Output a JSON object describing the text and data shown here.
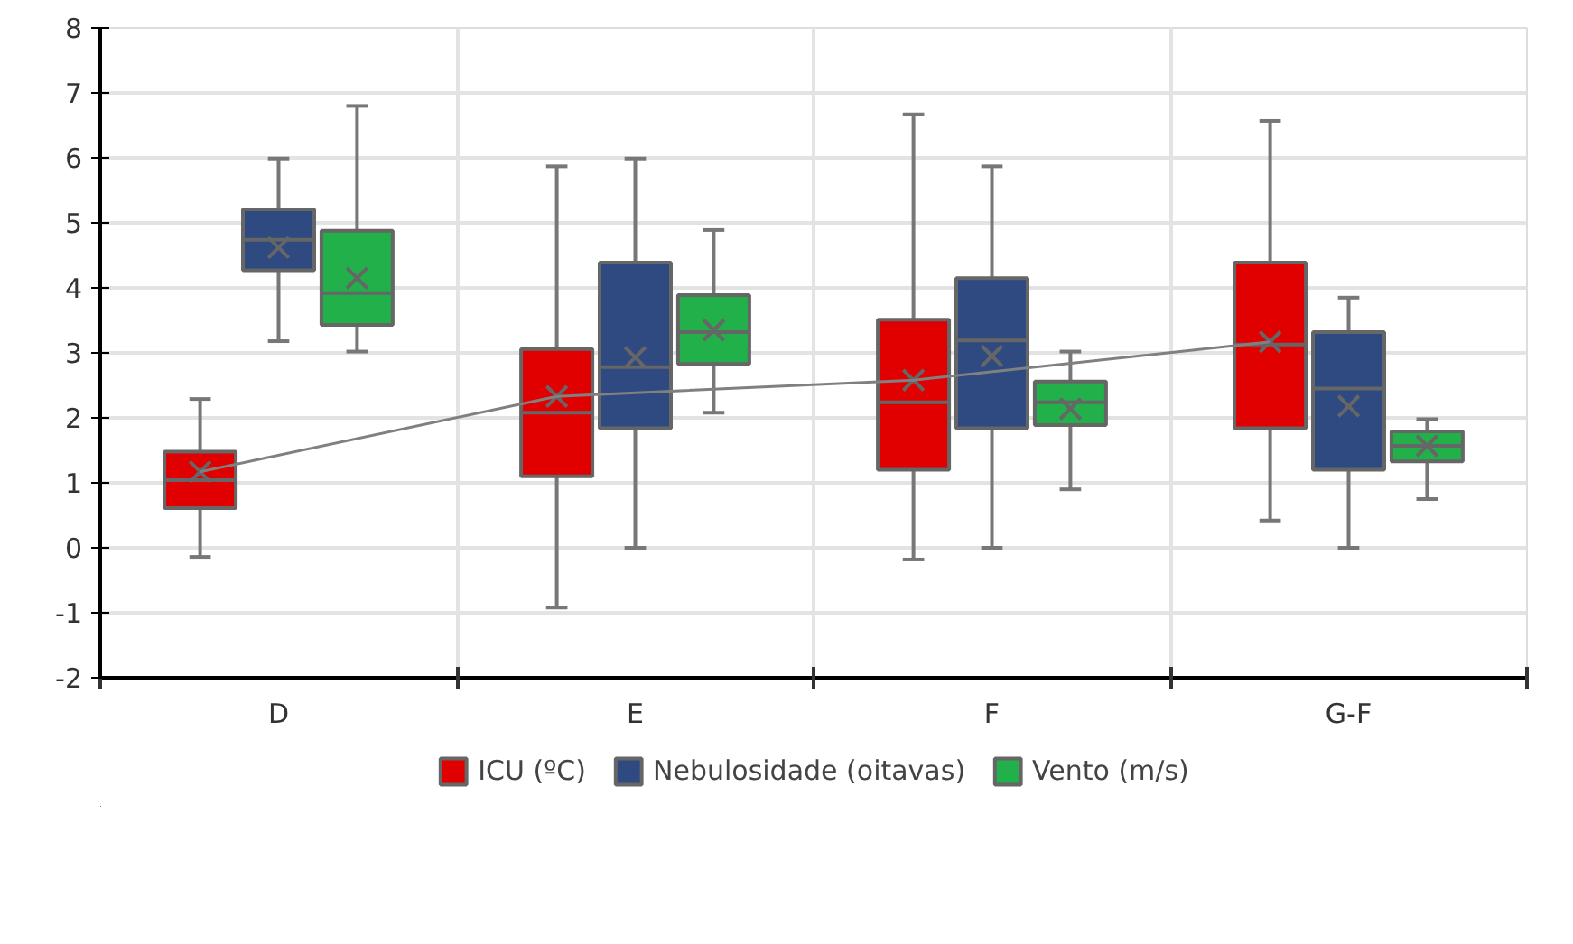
{
  "chart_data": {
    "type": "box",
    "categories": [
      "D",
      "E",
      "F",
      "G-F"
    ],
    "ylim": [
      -2,
      8
    ],
    "yticks": [
      -2,
      -1,
      0,
      1,
      2,
      3,
      4,
      5,
      6,
      7,
      8
    ],
    "grid": true,
    "legend": "bottom",
    "series": [
      {
        "name": "ICU (ºC)",
        "color": "#e00000",
        "boxes": [
          {
            "low": -0.14,
            "q1": 0.61,
            "median": 1.04,
            "q3": 1.48,
            "high": 2.29,
            "mean": 1.17
          },
          {
            "low": -0.92,
            "q1": 1.1,
            "median": 2.08,
            "q3": 3.06,
            "high": 5.87,
            "mean": 2.33
          },
          {
            "low": -0.18,
            "q1": 1.2,
            "median": 2.24,
            "q3": 3.51,
            "high": 6.67,
            "mean": 2.58
          },
          {
            "low": 0.42,
            "q1": 1.84,
            "median": 3.13,
            "q3": 4.39,
            "high": 6.57,
            "mean": 3.17
          }
        ]
      },
      {
        "name": "Nebulosidade (oitavas)",
        "color": "#2e4a80",
        "boxes": [
          {
            "low": 3.18,
            "q1": 4.27,
            "median": 4.74,
            "q3": 5.21,
            "high": 5.99,
            "mean": 4.62
          },
          {
            "low": 0,
            "q1": 1.84,
            "median": 2.78,
            "q3": 4.39,
            "high": 5.99,
            "mean": 2.93
          },
          {
            "low": 0,
            "q1": 1.84,
            "median": 3.19,
            "q3": 4.15,
            "high": 5.87,
            "mean": 2.95
          },
          {
            "low": 0,
            "q1": 1.2,
            "median": 2.45,
            "q3": 3.32,
            "high": 3.85,
            "mean": 2.18
          }
        ]
      },
      {
        "name": "Vento (m/s)",
        "color": "#22b04a",
        "boxes": [
          {
            "low": 3.02,
            "q1": 3.43,
            "median": 3.92,
            "q3": 4.88,
            "high": 6.8,
            "mean": 4.15
          },
          {
            "low": 2.08,
            "q1": 2.83,
            "median": 3.32,
            "q3": 3.89,
            "high": 4.89,
            "mean": 3.35
          },
          {
            "low": 0.9,
            "q1": 1.89,
            "median": 2.24,
            "q3": 2.56,
            "high": 3.02,
            "mean": 2.14
          },
          {
            "low": 0.75,
            "q1": 1.33,
            "median": 1.57,
            "q3": 1.79,
            "high": 1.98,
            "mean": 1.57
          }
        ]
      },
      {
        "type": "line",
        "color": "#808080",
        "values": [
          1.17,
          2.33,
          2.58,
          3.17
        ]
      }
    ]
  }
}
